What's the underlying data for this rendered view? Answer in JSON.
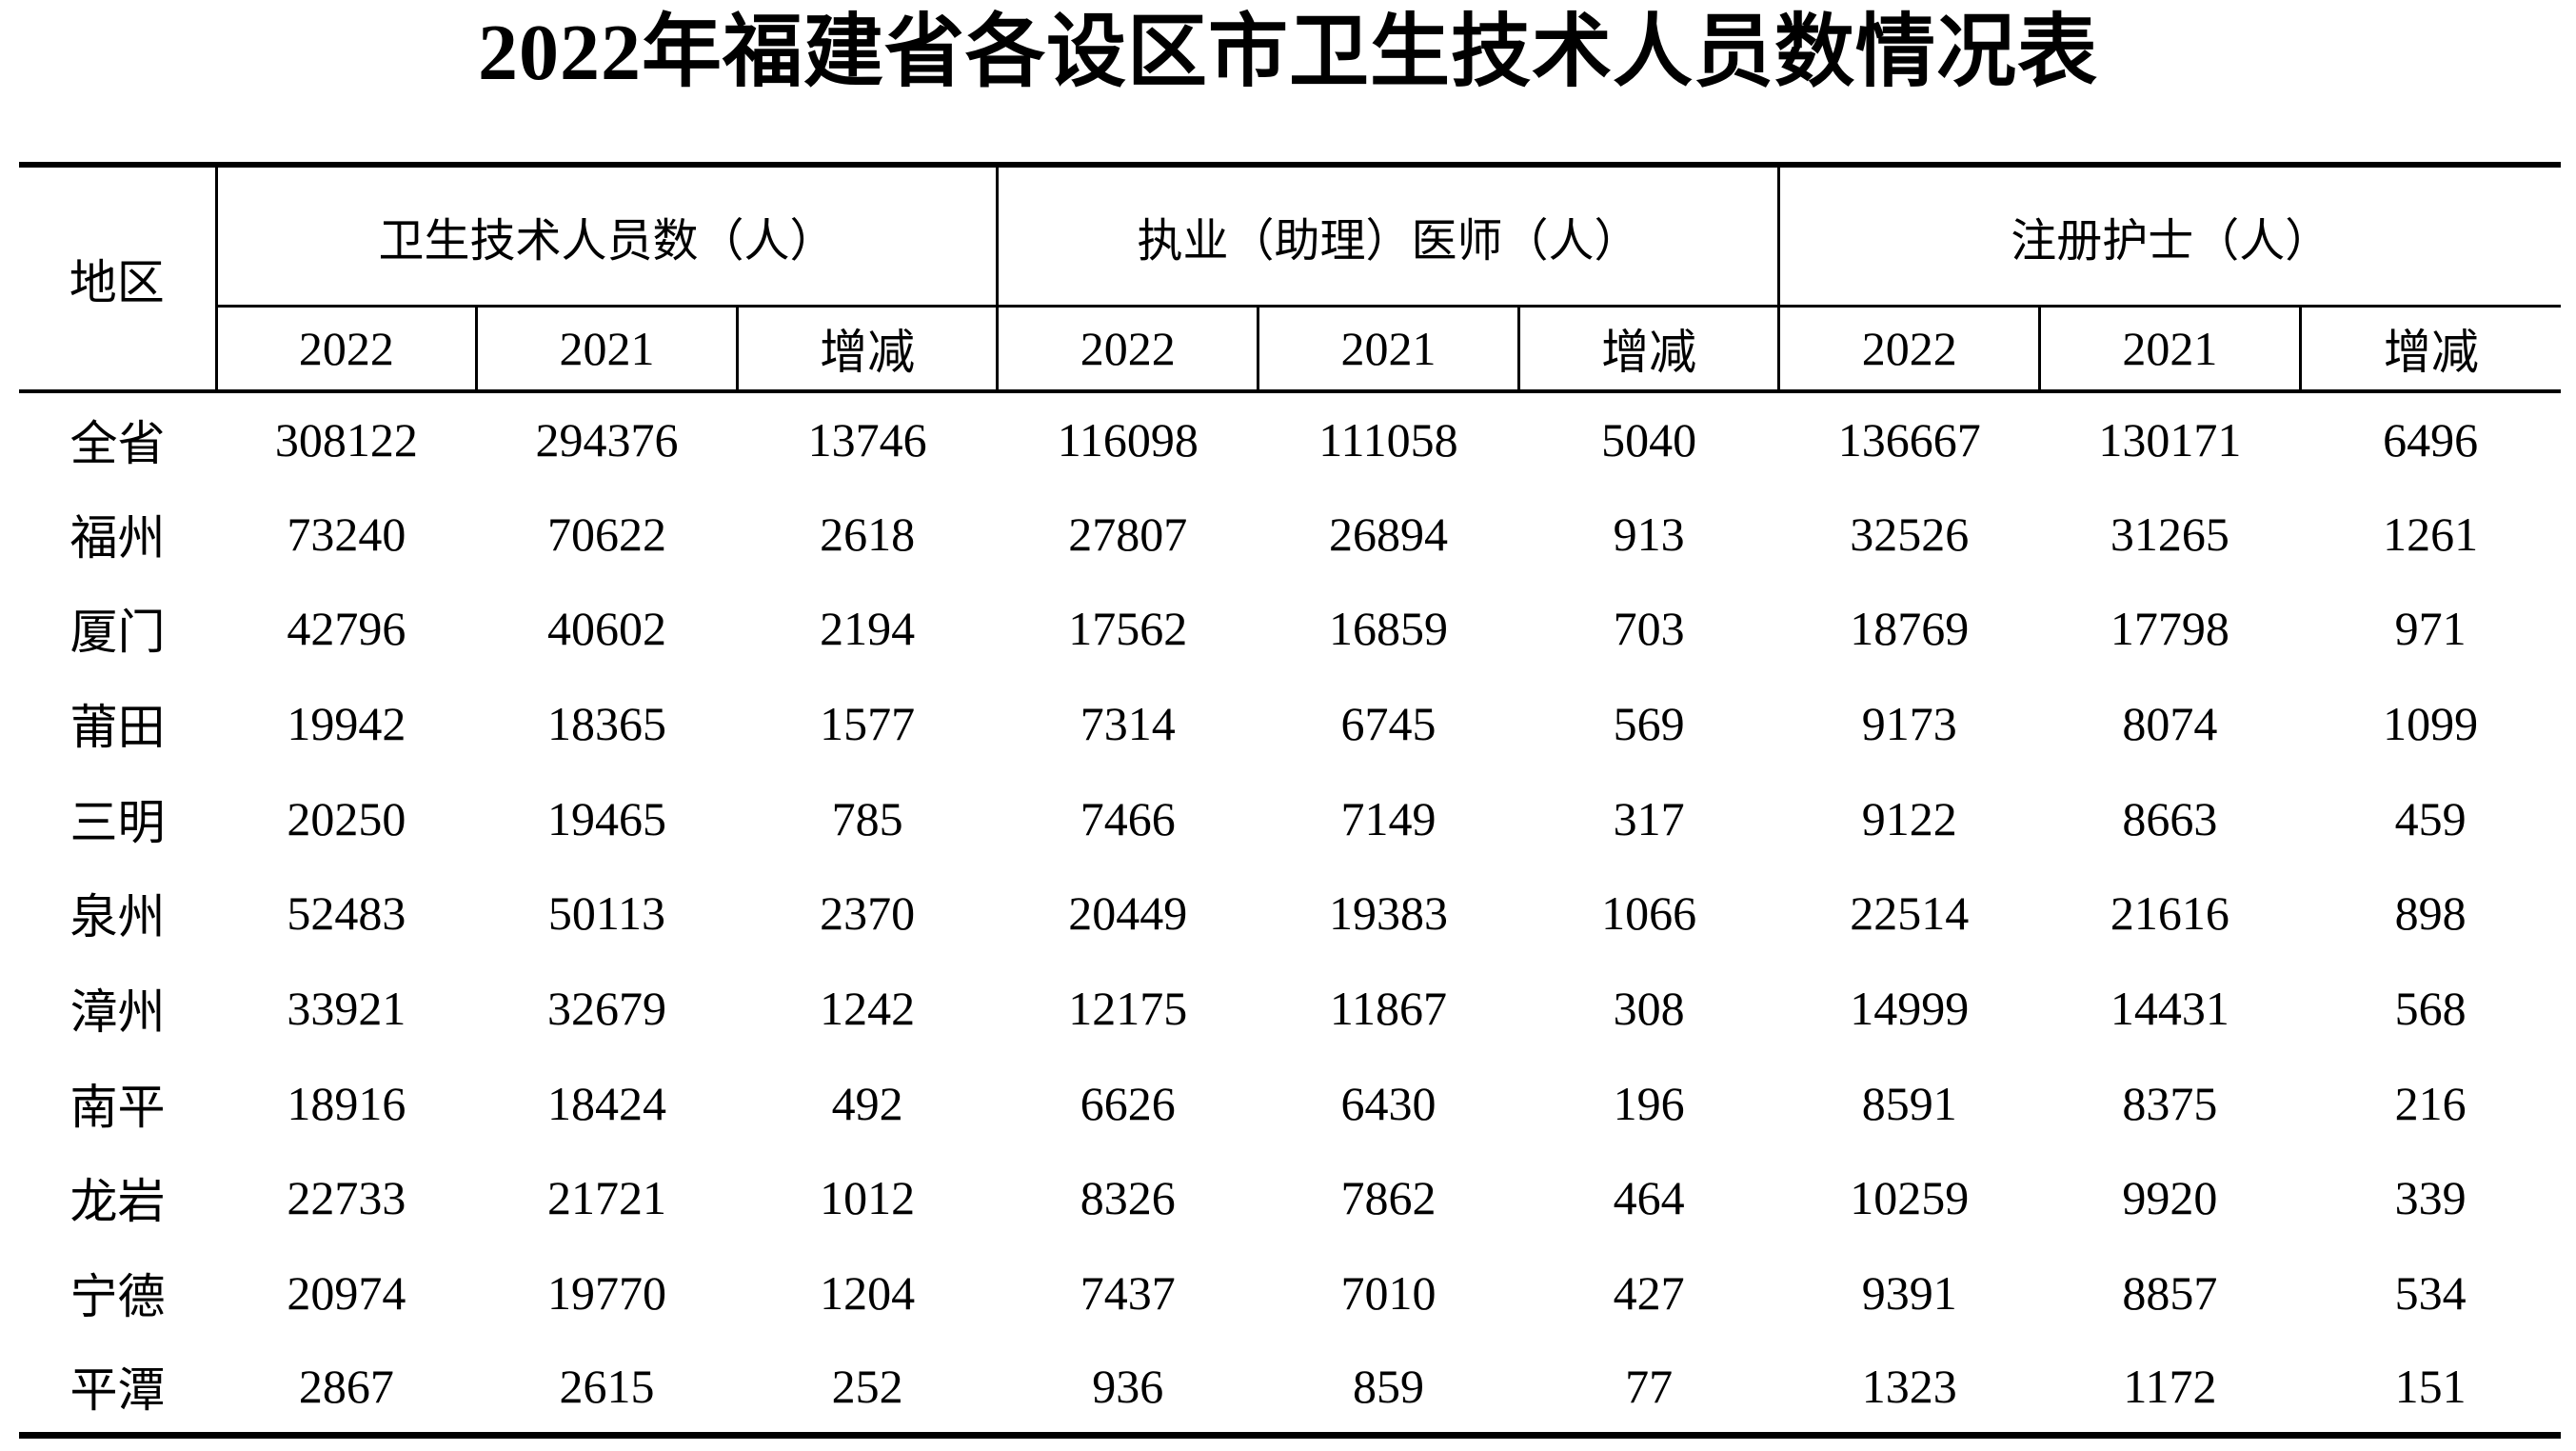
{
  "title": "2022年福建省各设区市卫生技术人员数情况表",
  "colors": {
    "text": "#000000",
    "background": "#ffffff"
  },
  "chart_data": {
    "type": "table",
    "title": "2022年福建省各设区市卫生技术人员数情况表",
    "row_header": "地区",
    "column_groups": [
      {
        "label": "卫生技术人员数（人）"
      },
      {
        "label": "执业（助理）医师（人）"
      },
      {
        "label": "注册护士（人）"
      }
    ],
    "subcolumns": {
      "c2022": "2022",
      "c2021": "2021",
      "delta": "增减"
    },
    "rows": [
      {
        "region": "全省",
        "values": [
          308122,
          294376,
          13746,
          116098,
          111058,
          5040,
          136667,
          130171,
          6496
        ]
      },
      {
        "region": "福州",
        "values": [
          73240,
          70622,
          2618,
          27807,
          26894,
          913,
          32526,
          31265,
          1261
        ]
      },
      {
        "region": "厦门",
        "values": [
          42796,
          40602,
          2194,
          17562,
          16859,
          703,
          18769,
          17798,
          971
        ]
      },
      {
        "region": "莆田",
        "values": [
          19942,
          18365,
          1577,
          7314,
          6745,
          569,
          9173,
          8074,
          1099
        ]
      },
      {
        "region": "三明",
        "values": [
          20250,
          19465,
          785,
          7466,
          7149,
          317,
          9122,
          8663,
          459
        ]
      },
      {
        "region": "泉州",
        "values": [
          52483,
          50113,
          2370,
          20449,
          19383,
          1066,
          22514,
          21616,
          898
        ]
      },
      {
        "region": "漳州",
        "values": [
          33921,
          32679,
          1242,
          12175,
          11867,
          308,
          14999,
          14431,
          568
        ]
      },
      {
        "region": "南平",
        "values": [
          18916,
          18424,
          492,
          6626,
          6430,
          196,
          8591,
          8375,
          216
        ]
      },
      {
        "region": "龙岩",
        "values": [
          22733,
          21721,
          1012,
          8326,
          7862,
          464,
          10259,
          9920,
          339
        ]
      },
      {
        "region": "宁德",
        "values": [
          20974,
          19770,
          1204,
          7437,
          7010,
          427,
          9391,
          8857,
          534
        ]
      },
      {
        "region": "平潭",
        "values": [
          2867,
          2615,
          252,
          936,
          859,
          77,
          1323,
          1172,
          151
        ]
      }
    ]
  }
}
